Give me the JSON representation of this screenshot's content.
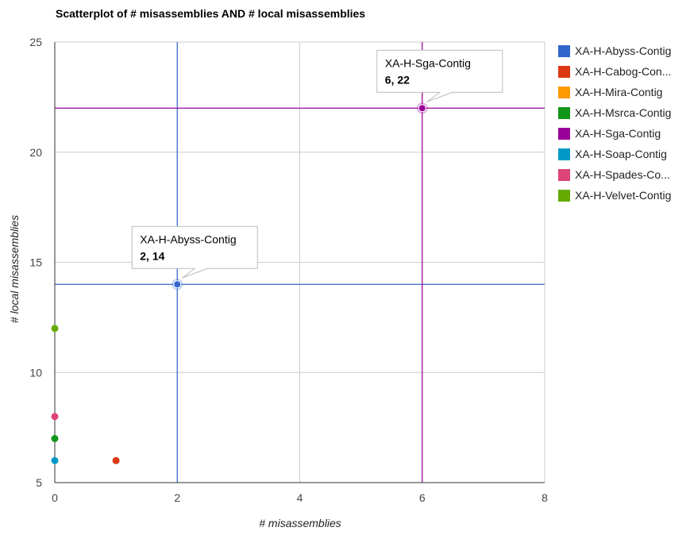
{
  "chart_data": {
    "type": "scatter",
    "title": "Scatterplot of # misassemblies AND # local misassemblies",
    "xlabel": "# misassemblies",
    "ylabel": "# local misassemblies",
    "xlim": [
      0,
      8
    ],
    "ylim": [
      5,
      25
    ],
    "xticks": [
      0,
      2,
      4,
      6,
      8
    ],
    "yticks": [
      5,
      10,
      15,
      20,
      25
    ],
    "grid": true,
    "legend_position": "right",
    "series": [
      {
        "name": "XA-H-Abyss-Contig",
        "legend_label": "XA-H-Abyss-Contig",
        "color": "#3366cc",
        "points": [
          [
            2,
            14
          ]
        ]
      },
      {
        "name": "XA-H-Cabog-Contig",
        "legend_label": "XA-H-Cabog-Con...",
        "color": "#dc3912",
        "points": [
          [
            1,
            6
          ]
        ]
      },
      {
        "name": "XA-H-Mira-Contig",
        "legend_label": "XA-H-Mira-Contig",
        "color": "#ff9900",
        "points": []
      },
      {
        "name": "XA-H-Msrca-Contig",
        "legend_label": "XA-H-Msrca-Contig",
        "color": "#109618",
        "points": [
          [
            0,
            7
          ]
        ]
      },
      {
        "name": "XA-H-Sga-Contig",
        "legend_label": "XA-H-Sga-Contig",
        "color": "#990099",
        "points": [
          [
            6,
            22
          ]
        ]
      },
      {
        "name": "XA-H-Soap-Contig",
        "legend_label": "XA-H-Soap-Contig",
        "color": "#0099c6",
        "points": [
          [
            0,
            6
          ]
        ]
      },
      {
        "name": "XA-H-Spades-Contig",
        "legend_label": "XA-H-Spades-Co...",
        "color": "#dd4477",
        "points": [
          [
            0,
            8
          ]
        ]
      },
      {
        "name": "XA-H-Velvet-Contig",
        "legend_label": "XA-H-Velvet-Contig",
        "color": "#66aa00",
        "points": [
          [
            0,
            12
          ]
        ]
      }
    ],
    "tooltips": [
      {
        "series": "XA-H-Abyss-Contig",
        "x": 2,
        "y": 14,
        "label": "XA-H-Abyss-Contig",
        "value": "2, 14",
        "color": "#3366cc"
      },
      {
        "series": "XA-H-Sga-Contig",
        "x": 6,
        "y": 22,
        "label": "XA-H-Sga-Contig",
        "value": "6, 22",
        "color": "#990099"
      }
    ]
  }
}
